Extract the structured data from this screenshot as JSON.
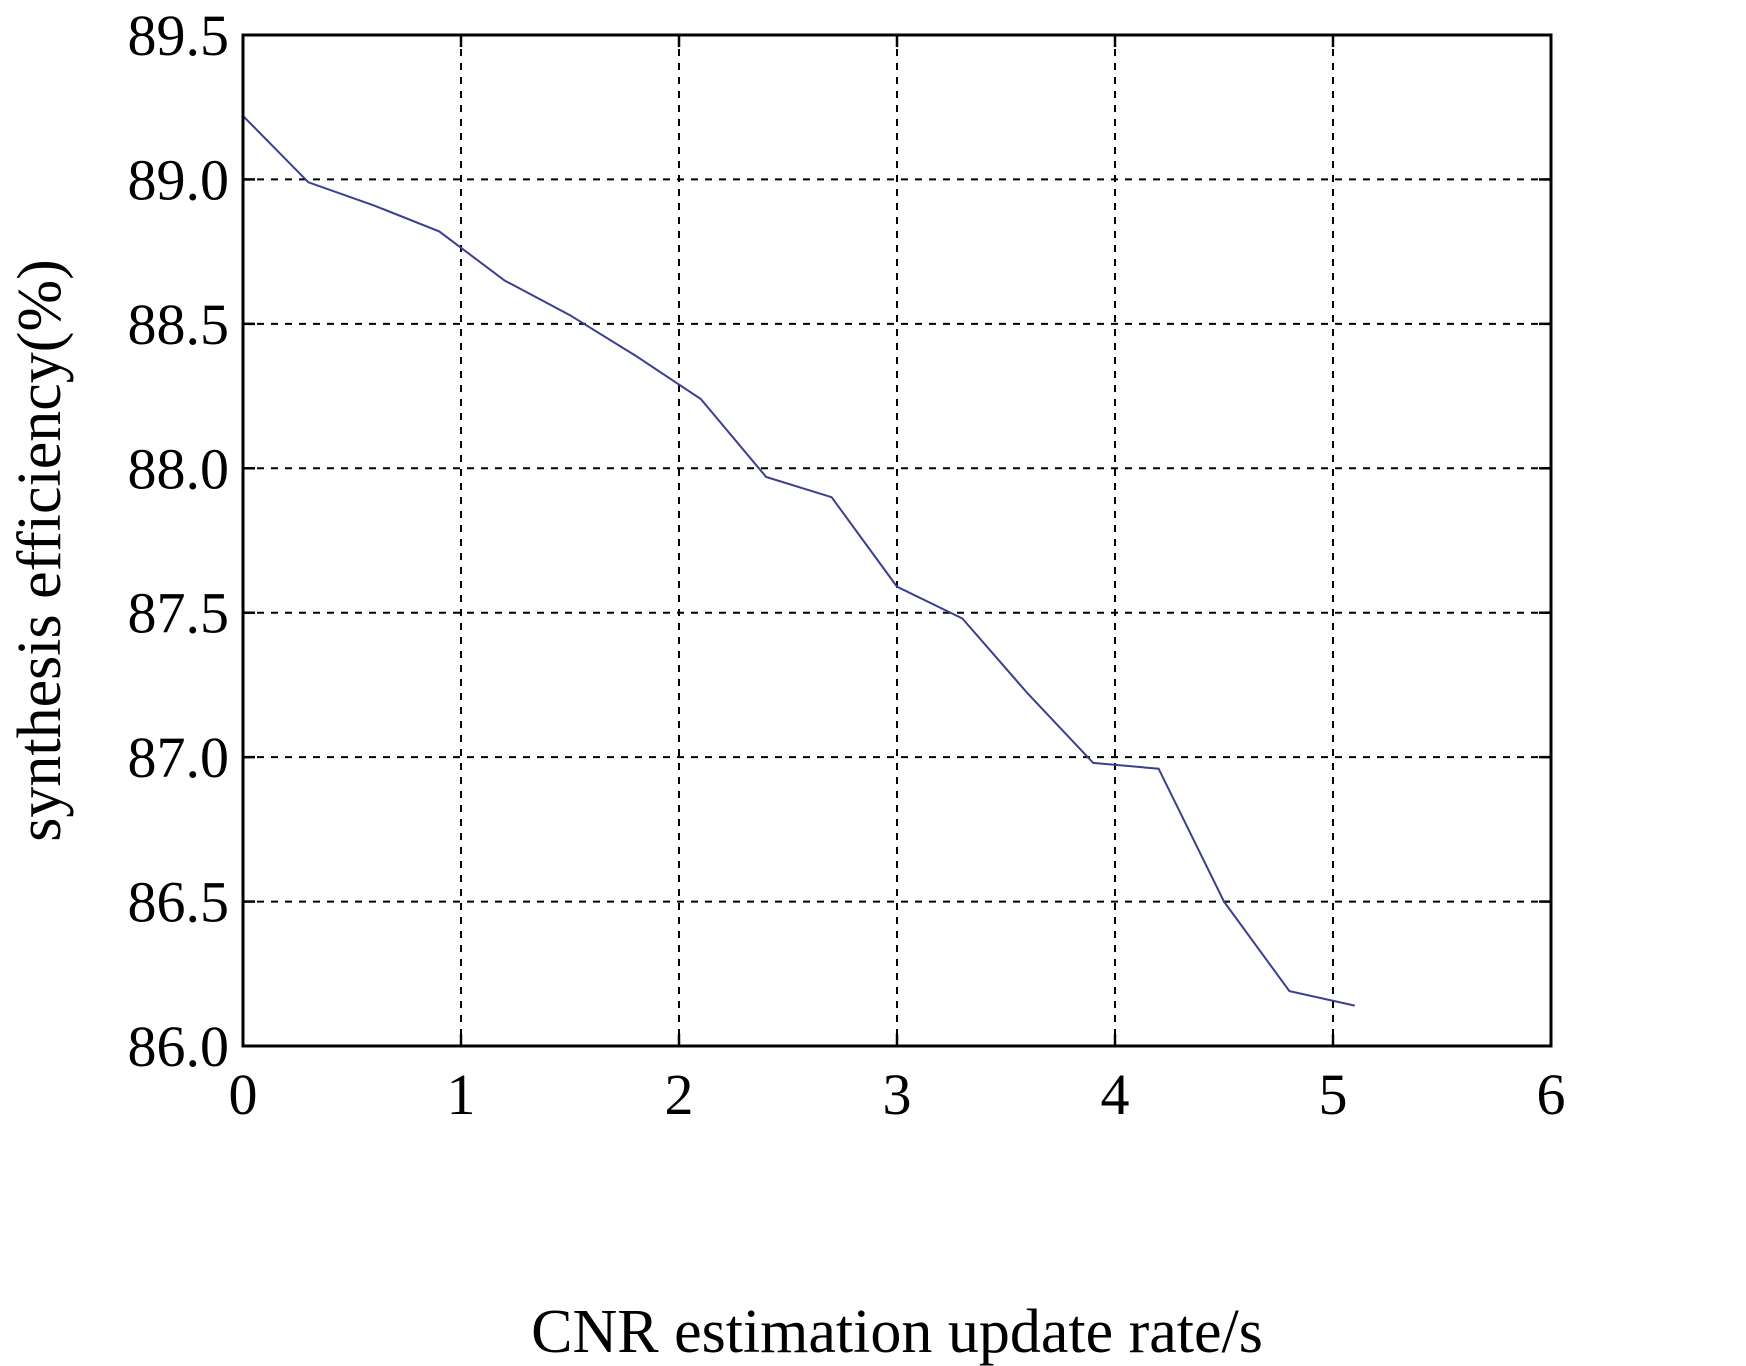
{
  "chart_data": {
    "type": "line",
    "title": "",
    "xlabel": "CNR estimation update rate/s",
    "ylabel": "synthesis efficiency(%)",
    "xlim": [
      0,
      6
    ],
    "ylim": [
      86.0,
      89.5
    ],
    "xticks": [
      "0",
      "1",
      "2",
      "3",
      "4",
      "5",
      "6"
    ],
    "yticks": [
      "86.0",
      "86.5",
      "87.0",
      "87.5",
      "88.0",
      "88.5",
      "89.0",
      "89.5"
    ],
    "grid": true,
    "series": [
      {
        "color": "#3a3f8f",
        "x": [
          0,
          0.3,
          0.6,
          0.9,
          1.2,
          1.5,
          1.8,
          2.1,
          2.4,
          2.7,
          3.0,
          3.3,
          3.6,
          3.9,
          4.2,
          4.5,
          4.8,
          5.1
        ],
        "y": [
          89.22,
          88.99,
          88.91,
          88.82,
          88.65,
          88.53,
          88.39,
          88.24,
          87.97,
          87.9,
          87.59,
          87.48,
          87.22,
          86.98,
          86.96,
          86.5,
          86.19,
          86.14
        ]
      }
    ]
  }
}
